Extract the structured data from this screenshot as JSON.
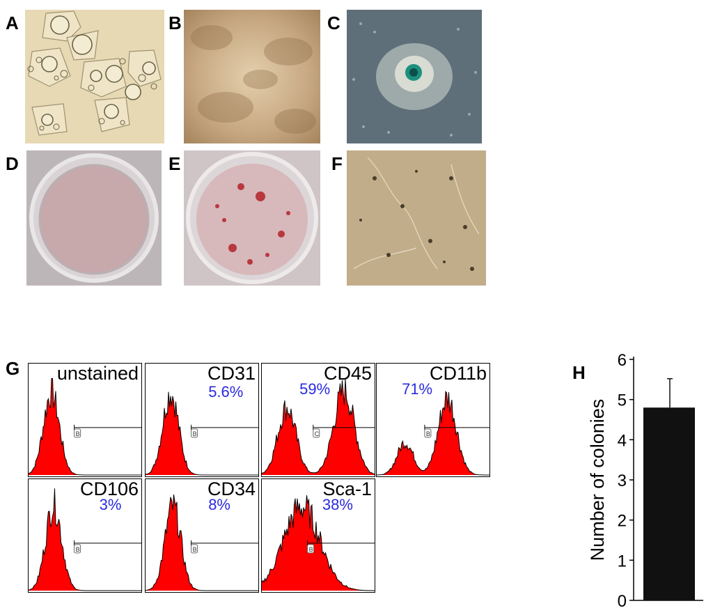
{
  "figure": {
    "panels": {
      "a": "A",
      "b": "B",
      "c": "C",
      "d": "D",
      "e": "E",
      "f": "F",
      "g": "G",
      "h": "H"
    },
    "histograms": [
      {
        "name": "unstained",
        "percent": "",
        "gate": "B"
      },
      {
        "name": "CD31",
        "percent": "5.6%",
        "gate": "B"
      },
      {
        "name": "CD45",
        "percent": "59%",
        "gate": "C"
      },
      {
        "name": "CD11b",
        "percent": "71%",
        "gate": "B"
      },
      {
        "name": "CD106",
        "percent": "3%",
        "gate": "B"
      },
      {
        "name": "CD34",
        "percent": "8%",
        "gate": "B"
      },
      {
        "name": "Sca-1",
        "percent": "38%",
        "gate": "B"
      }
    ],
    "colors": {
      "histogram_fill": "#ff0000",
      "percent_text": "#2a2ae0",
      "bar": "#111111"
    }
  },
  "chart_data": {
    "type": "bar",
    "title": "",
    "xlabel": "",
    "ylabel": "Number of colonies",
    "ylim": [
      0,
      6
    ],
    "yticks": [
      "0",
      "1",
      "2",
      "3",
      "4",
      "5",
      "6"
    ],
    "categories": [
      ""
    ],
    "values": [
      4.8
    ],
    "error": [
      0.72
    ]
  }
}
